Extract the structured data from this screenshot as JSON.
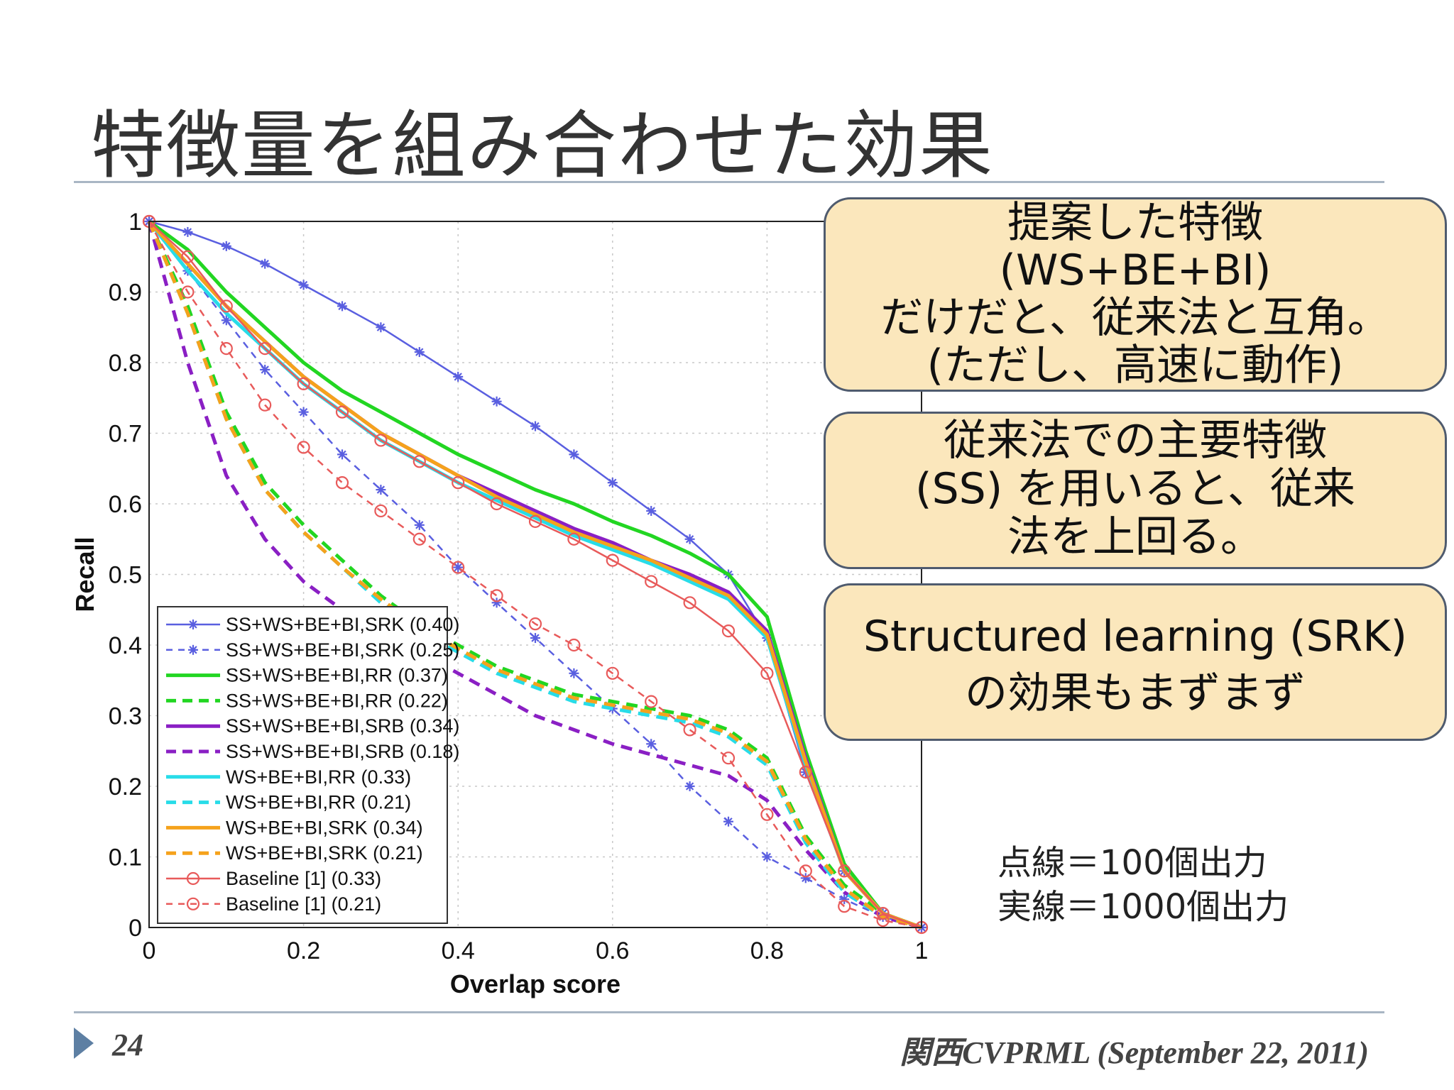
{
  "slide": {
    "title": "特徴量を組み合わせた効果",
    "page_number": "24",
    "footer": "関西CVPRML (September 22, 2011)"
  },
  "callouts": [
    {
      "lines": [
        "提案した特徴",
        "(WS+BE+BI)",
        "だけだと、従来法と互角。",
        "(ただし、高速に動作)"
      ]
    },
    {
      "lines": [
        "従来法での主要特徴",
        "(SS) を用いると、従来",
        "法を上回る。"
      ]
    },
    {
      "lines": [
        "Structured learning (SRK)",
        "の効果もまずまず"
      ]
    }
  ],
  "note": {
    "lines": [
      "点線＝100個出力",
      "実線＝1000個出力"
    ]
  },
  "chart_data": {
    "type": "line",
    "xlabel": "Overlap score",
    "ylabel": "Recall",
    "xlim": [
      0,
      1
    ],
    "ylim": [
      0,
      1
    ],
    "xticks": [
      "0",
      "0.2",
      "0.4",
      "0.6",
      "0.8",
      "1"
    ],
    "yticks": [
      "0",
      "0.1",
      "0.2",
      "0.3",
      "0.4",
      "0.5",
      "0.6",
      "0.7",
      "0.8",
      "0.9",
      "1"
    ],
    "grid": true,
    "legend_position": "bottom-left",
    "x": [
      0,
      0.05,
      0.1,
      0.15,
      0.2,
      0.25,
      0.3,
      0.35,
      0.4,
      0.45,
      0.5,
      0.55,
      0.6,
      0.65,
      0.7,
      0.75,
      0.8,
      0.85,
      0.9,
      0.95,
      1.0
    ],
    "series": [
      {
        "name": "SS+WS+BE+BI,SRK (0.40)",
        "color": "#5a5fe0",
        "dash": "solid",
        "marker": "star",
        "values": [
          1.0,
          0.985,
          0.965,
          0.94,
          0.91,
          0.88,
          0.85,
          0.815,
          0.78,
          0.745,
          0.71,
          0.67,
          0.63,
          0.59,
          0.55,
          0.5,
          0.41,
          0.22,
          0.08,
          0.02,
          0.0
        ]
      },
      {
        "name": "SS+WS+BE+BI,SRK (0.25)",
        "color": "#5a5fe0",
        "dash": "dashed",
        "marker": "star",
        "values": [
          1.0,
          0.93,
          0.86,
          0.79,
          0.73,
          0.67,
          0.62,
          0.57,
          0.51,
          0.46,
          0.41,
          0.36,
          0.31,
          0.26,
          0.2,
          0.15,
          0.1,
          0.07,
          0.04,
          0.015,
          0.0
        ]
      },
      {
        "name": "SS+WS+BE+BI,RR (0.37)",
        "color": "#22d622",
        "dash": "solid",
        "marker": "none",
        "values": [
          1.0,
          0.96,
          0.9,
          0.85,
          0.8,
          0.76,
          0.73,
          0.7,
          0.67,
          0.645,
          0.62,
          0.6,
          0.575,
          0.555,
          0.53,
          0.5,
          0.44,
          0.25,
          0.09,
          0.02,
          0.0
        ]
      },
      {
        "name": "SS+WS+BE+BI,RR (0.22)",
        "color": "#22d622",
        "dash": "dashed",
        "marker": "none",
        "values": [
          1.0,
          0.88,
          0.73,
          0.63,
          0.57,
          0.52,
          0.47,
          0.43,
          0.4,
          0.37,
          0.35,
          0.33,
          0.32,
          0.31,
          0.3,
          0.28,
          0.24,
          0.13,
          0.06,
          0.02,
          0.0
        ]
      },
      {
        "name": "SS+WS+BE+BI,SRB (0.34)",
        "color": "#8a1fc4",
        "dash": "solid",
        "marker": "none",
        "values": [
          1.0,
          0.94,
          0.88,
          0.83,
          0.78,
          0.74,
          0.7,
          0.67,
          0.64,
          0.615,
          0.59,
          0.565,
          0.545,
          0.52,
          0.5,
          0.475,
          0.42,
          0.24,
          0.08,
          0.02,
          0.0
        ]
      },
      {
        "name": "SS+WS+BE+BI,SRB (0.18)",
        "color": "#8a1fc4",
        "dash": "dashed",
        "marker": "none",
        "values": [
          1.0,
          0.8,
          0.64,
          0.55,
          0.49,
          0.45,
          0.42,
          0.39,
          0.36,
          0.33,
          0.3,
          0.28,
          0.26,
          0.245,
          0.23,
          0.215,
          0.18,
          0.11,
          0.05,
          0.015,
          0.0
        ]
      },
      {
        "name": "WS+BE+BI,RR (0.33)",
        "color": "#28dce8",
        "dash": "solid",
        "marker": "none",
        "values": [
          1.0,
          0.93,
          0.87,
          0.82,
          0.77,
          0.73,
          0.69,
          0.66,
          0.63,
          0.605,
          0.58,
          0.555,
          0.535,
          0.515,
          0.49,
          0.465,
          0.41,
          0.23,
          0.08,
          0.02,
          0.0
        ]
      },
      {
        "name": "WS+BE+BI,RR (0.21)",
        "color": "#28dce8",
        "dash": "dashed",
        "marker": "none",
        "values": [
          1.0,
          0.87,
          0.72,
          0.62,
          0.56,
          0.51,
          0.46,
          0.42,
          0.39,
          0.36,
          0.34,
          0.32,
          0.31,
          0.3,
          0.29,
          0.27,
          0.23,
          0.12,
          0.05,
          0.015,
          0.0
        ]
      },
      {
        "name": "WS+BE+BI,SRK (0.34)",
        "color": "#f5a21c",
        "dash": "solid",
        "marker": "none",
        "values": [
          1.0,
          0.94,
          0.88,
          0.83,
          0.78,
          0.74,
          0.7,
          0.67,
          0.64,
          0.61,
          0.585,
          0.56,
          0.54,
          0.52,
          0.495,
          0.47,
          0.415,
          0.235,
          0.08,
          0.02,
          0.0
        ]
      },
      {
        "name": "WS+BE+BI,SRK (0.21)",
        "color": "#f5a21c",
        "dash": "dashed",
        "marker": "none",
        "values": [
          1.0,
          0.87,
          0.72,
          0.62,
          0.56,
          0.51,
          0.465,
          0.425,
          0.395,
          0.365,
          0.345,
          0.325,
          0.315,
          0.305,
          0.295,
          0.275,
          0.235,
          0.125,
          0.055,
          0.015,
          0.0
        ]
      },
      {
        "name": "Baseline [1] (0.33)",
        "color": "#e85a5a",
        "dash": "solid",
        "marker": "circle",
        "values": [
          1.0,
          0.95,
          0.88,
          0.82,
          0.77,
          0.73,
          0.69,
          0.66,
          0.63,
          0.6,
          0.575,
          0.55,
          0.52,
          0.49,
          0.46,
          0.42,
          0.36,
          0.22,
          0.08,
          0.02,
          0.0
        ]
      },
      {
        "name": "Baseline [1] (0.21)",
        "color": "#e85a5a",
        "dash": "dashed",
        "marker": "circle",
        "values": [
          1.0,
          0.9,
          0.82,
          0.74,
          0.68,
          0.63,
          0.59,
          0.55,
          0.51,
          0.47,
          0.43,
          0.4,
          0.36,
          0.32,
          0.28,
          0.24,
          0.16,
          0.08,
          0.03,
          0.01,
          0.0
        ]
      }
    ]
  }
}
